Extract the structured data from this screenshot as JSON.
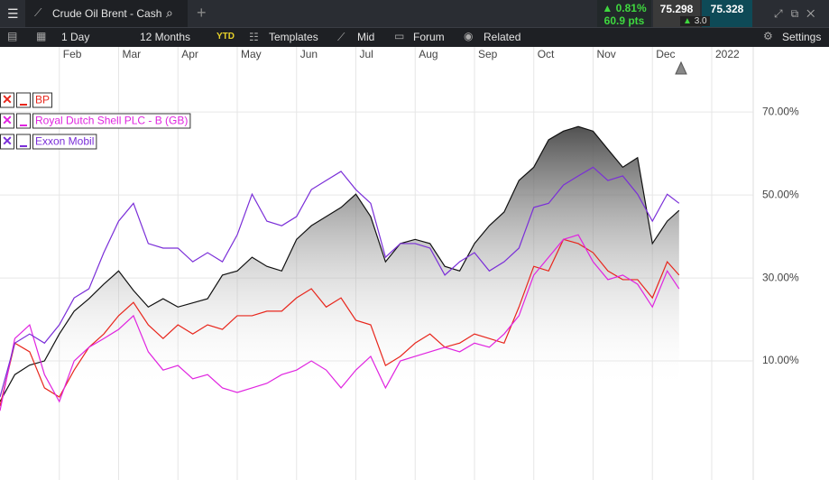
{
  "header": {
    "tab_title": "Crude Oil Brent - Cash",
    "change_pct": "0.81%",
    "change_pts": "60.9 pts",
    "bid": "75.298",
    "spread": "3.0",
    "ask": "75.328"
  },
  "toolbar": {
    "interval": "1 Day",
    "range": "12 Months",
    "ytd": "YTD",
    "templates": "Templates",
    "price": "Mid",
    "forum": "Forum",
    "related": "Related",
    "settings": "Settings"
  },
  "chart_data": {
    "type": "line",
    "x": [
      0,
      0.25,
      0.5,
      0.75,
      1,
      1.25,
      1.5,
      1.75,
      2,
      2.25,
      2.5,
      2.75,
      3,
      3.25,
      3.5,
      3.75,
      4,
      4.25,
      4.5,
      4.75,
      5,
      5.25,
      5.5,
      5.75,
      6,
      6.25,
      6.5,
      6.75,
      7,
      7.25,
      7.5,
      7.75,
      8,
      8.25,
      8.5,
      8.75,
      9,
      9.25,
      9.5,
      9.75,
      10,
      10.25,
      10.5,
      10.75,
      11,
      11.25,
      11.45
    ],
    "xlim": [
      0,
      12.7
    ],
    "xticks": [
      {
        "value": 1,
        "label": "Feb"
      },
      {
        "value": 2,
        "label": "Mar"
      },
      {
        "value": 3,
        "label": "Apr"
      },
      {
        "value": 4,
        "label": "May"
      },
      {
        "value": 5,
        "label": "Jun"
      },
      {
        "value": 6,
        "label": "Jul"
      },
      {
        "value": 7,
        "label": "Aug"
      },
      {
        "value": 8,
        "label": "Sep"
      },
      {
        "value": 9,
        "label": "Oct"
      },
      {
        "value": 10,
        "label": "Nov"
      },
      {
        "value": 11,
        "label": "Dec"
      },
      {
        "value": 12,
        "label": "2022"
      }
    ],
    "ylim": [
      -18.7,
      85.7
    ],
    "yticks": [
      {
        "value": 10,
        "label": "10.00%"
      },
      {
        "value": 30,
        "label": "30.00%"
      },
      {
        "value": 50,
        "label": "50.00%"
      },
      {
        "value": 70,
        "label": "70.00%"
      }
    ],
    "grid": true,
    "area": {
      "color": "#111111",
      "values": [
        0.2,
        6.7,
        9,
        10,
        16.5,
        22,
        25,
        28.5,
        31.7,
        27,
        23,
        25,
        23,
        24,
        25,
        30.7,
        31.7,
        35,
        32.8,
        31.7,
        39.3,
        42.6,
        44.8,
        47,
        50.2,
        44.8,
        33.9,
        38.3,
        39.3,
        38.3,
        32.8,
        31.7,
        38.3,
        42.6,
        45.9,
        53.5,
        56.7,
        63.3,
        65.4,
        66.5,
        65.4,
        61,
        56.7,
        59,
        38.3,
        43.7,
        46.3
      ]
    },
    "series": [
      {
        "name": "BP",
        "color": "#e8261c",
        "values": [
          -0.9,
          14.3,
          12.2,
          3.5,
          1.3,
          7.8,
          13.3,
          16.5,
          20.9,
          24.1,
          18.7,
          15.4,
          18.7,
          16.5,
          18.7,
          17.6,
          20.9,
          20.9,
          22,
          22,
          25.2,
          27.4,
          23,
          25.2,
          19.8,
          18.7,
          8.9,
          11.1,
          14.3,
          16.5,
          13.3,
          14.3,
          16.5,
          15.4,
          14.3,
          23,
          32.8,
          31.7,
          39.3,
          38.3,
          36.1,
          31.7,
          29.6,
          29.6,
          25.2,
          33.9,
          30.7
        ]
      },
      {
        "name": "Royal Dutch Shell PLC - B (GB)",
        "color": "#e024e0",
        "values": [
          -2,
          15.4,
          18.7,
          6.7,
          0.2,
          10,
          13.3,
          15.4,
          17.6,
          20.9,
          12.2,
          7.8,
          8.9,
          5.7,
          6.7,
          3.5,
          2.4,
          3.5,
          4.6,
          6.7,
          7.8,
          10,
          7.8,
          3.5,
          7.8,
          11.1,
          3.5,
          10,
          11.1,
          12.2,
          13.3,
          12.2,
          14.3,
          13.3,
          16.5,
          20.9,
          30.7,
          35,
          39.3,
          40.4,
          33.9,
          29.6,
          30.7,
          28.5,
          23,
          31.7,
          27.4
        ]
      },
      {
        "name": "Exxon Mobil",
        "color": "#7a2ed8",
        "values": [
          1.3,
          14.3,
          16.5,
          14.3,
          18.7,
          25.2,
          27.4,
          36.1,
          43.7,
          48,
          38.3,
          37.2,
          37.2,
          33.9,
          36.1,
          33.9,
          40.4,
          50.2,
          43.7,
          42.6,
          44.8,
          51.3,
          53.5,
          55.7,
          51.3,
          48,
          35,
          38.3,
          38.3,
          37.2,
          30.7,
          33.9,
          36.1,
          31.7,
          33.9,
          37.2,
          47,
          48,
          52.4,
          54.6,
          56.7,
          53.5,
          54.6,
          50.2,
          43.7,
          50.2,
          48
        ]
      }
    ]
  }
}
